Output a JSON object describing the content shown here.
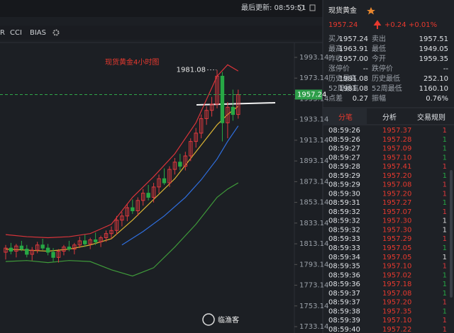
{
  "top_bar": {
    "last_update": "最后更新: 08:59:51"
  },
  "indicator_tabs": [
    "R",
    "CCI",
    "BIAS"
  ],
  "chart_data": {
    "type": "candlestick",
    "annotation": "现货黄金4小时图",
    "open": [
      1805,
      1809,
      1806,
      1811,
      1808,
      1803,
      1807,
      1812,
      1809,
      1805,
      1800,
      1806,
      1810,
      1808,
      1812,
      1816,
      1813,
      1817,
      1815,
      1819,
      1823,
      1826,
      1836,
      1840,
      1848,
      1845,
      1855,
      1862,
      1858,
      1868,
      1876,
      1872,
      1885,
      1892,
      1888,
      1898,
      1912,
      1920,
      1934,
      1942,
      1948,
      1975,
      1930,
      1945,
      1938
    ],
    "high": [
      1812,
      1814,
      1813,
      1816,
      1812,
      1810,
      1815,
      1818,
      1813,
      1809,
      1808,
      1812,
      1816,
      1814,
      1820,
      1822,
      1819,
      1824,
      1821,
      1826,
      1830,
      1840,
      1844,
      1852,
      1856,
      1858,
      1866,
      1870,
      1872,
      1880,
      1886,
      1888,
      1896,
      1900,
      1902,
      1915,
      1925,
      1938,
      1946,
      1955,
      1981.08,
      1979,
      1950,
      1962,
      1962
    ],
    "low": [
      1798,
      1803,
      1800,
      1806,
      1800,
      1797,
      1804,
      1807,
      1802,
      1796,
      1795,
      1802,
      1806,
      1803,
      1809,
      1810,
      1808,
      1812,
      1810,
      1815,
      1818,
      1822,
      1830,
      1835,
      1842,
      1840,
      1850,
      1855,
      1853,
      1862,
      1870,
      1868,
      1880,
      1884,
      1884,
      1893,
      1906,
      1915,
      1928,
      1936,
      1944,
      1912,
      1915,
      1932,
      1934
    ],
    "close": [
      1809,
      1806,
      1811,
      1808,
      1803,
      1807,
      1812,
      1809,
      1805,
      1800,
      1806,
      1810,
      1808,
      1812,
      1816,
      1813,
      1817,
      1815,
      1819,
      1823,
      1826,
      1836,
      1840,
      1848,
      1845,
      1855,
      1862,
      1858,
      1868,
      1876,
      1872,
      1885,
      1892,
      1888,
      1898,
      1912,
      1920,
      1934,
      1942,
      1948,
      1975,
      1930,
      1945,
      1938,
      1957.24
    ],
    "up_color": "#e0393e",
    "down_color": "#27a845",
    "lines": [
      {
        "color": "#d9343a",
        "x": [
          0,
          4,
          8,
          12,
          16,
          20,
          24,
          28,
          32,
          36,
          40,
          42,
          44
        ],
        "values": [
          1822,
          1820,
          1819,
          1820,
          1823,
          1832,
          1858,
          1878,
          1900,
          1930,
          1975,
          1986,
          1980
        ]
      },
      {
        "color": "#d8b234",
        "x": [
          0,
          4,
          8,
          12,
          16,
          20,
          24,
          28,
          32,
          36,
          40,
          42,
          44
        ],
        "values": [
          1808,
          1807,
          1806,
          1808,
          1812,
          1818,
          1836,
          1856,
          1876,
          1902,
          1928,
          1938,
          1946
        ]
      },
      {
        "color": "#2f6fe0",
        "x": [
          22,
          26,
          30,
          34,
          37,
          40,
          42,
          44
        ],
        "values": [
          1812,
          1825,
          1840,
          1858,
          1875,
          1895,
          1912,
          1927
        ]
      },
      {
        "color": "#3f9a3a",
        "x": [
          0,
          4,
          8,
          12,
          16,
          20,
          24,
          28,
          32,
          36,
          40,
          42,
          44
        ],
        "values": [
          1796,
          1797,
          1795,
          1797,
          1796,
          1788,
          1782,
          1790,
          1810,
          1832,
          1858,
          1866,
          1872
        ]
      }
    ],
    "ylim": [
      1727.0,
      2006.14
    ],
    "yticks": [
      1993.14,
      1973.14,
      1953.14,
      1933.14,
      1913.14,
      1893.14,
      1873.14,
      1853.14,
      1833.14,
      1813.14,
      1793.14,
      1773.14,
      1753.14,
      1733.14
    ],
    "last_price": 1957.24,
    "high_label": 1981.08
  },
  "watermark": "临渔客",
  "quote": {
    "name": "现货黄金",
    "price": "1957.24",
    "change": "+0.24",
    "change_pct": "+0.01%",
    "rows": [
      [
        "买入",
        "1957.24",
        "卖出",
        "1957.51"
      ],
      [
        "最高",
        "1963.91",
        "最低",
        "1949.05"
      ],
      [
        "昨收",
        "1957.00",
        "今开",
        "1959.35"
      ],
      [
        "涨停价",
        "--",
        "跌停价",
        "--"
      ],
      [
        "历史最高",
        "1981.08",
        "历史最低",
        "252.10"
      ],
      [
        "52周最高",
        "1981.08",
        "52周最低",
        "1160.10"
      ],
      [
        "点差",
        "0.27",
        "振幅",
        "0.76%"
      ]
    ]
  },
  "tabs": [
    "分笔",
    "分析",
    "交易规则"
  ],
  "trades": [
    {
      "time": "08:59:26",
      "price": "1957.37",
      "volume": "1",
      "color": "#e0393e"
    },
    {
      "time": "08:59:26",
      "price": "1957.28",
      "volume": "1",
      "color": "#27a845"
    },
    {
      "time": "08:59:27",
      "price": "1957.09",
      "volume": "1",
      "color": "#27a845"
    },
    {
      "time": "08:59:27",
      "price": "1957.10",
      "volume": "1",
      "color": "#27a845"
    },
    {
      "time": "08:59:28",
      "price": "1957.41",
      "volume": "1",
      "color": "#e0393e"
    },
    {
      "time": "08:59:29",
      "price": "1957.20",
      "volume": "1",
      "color": "#27a845"
    },
    {
      "time": "08:59:29",
      "price": "1957.08",
      "volume": "1",
      "color": "#e0393e"
    },
    {
      "time": "08:59:30",
      "price": "1957.20",
      "volume": "1",
      "color": "#e0393e"
    },
    {
      "time": "08:59:31",
      "price": "1957.27",
      "volume": "1",
      "color": "#27a845"
    },
    {
      "time": "08:59:32",
      "price": "1957.07",
      "volume": "1",
      "color": "#e0393e"
    },
    {
      "time": "08:59:32",
      "price": "1957.30",
      "volume": "1",
      "color": "#dddddd"
    },
    {
      "time": "08:59:32",
      "price": "1957.30",
      "volume": "1",
      "color": "#dddddd"
    },
    {
      "time": "08:59:33",
      "price": "1957.29",
      "volume": "1",
      "color": "#e0393e"
    },
    {
      "time": "08:59:33",
      "price": "1957.05",
      "volume": "1",
      "color": "#27a845"
    },
    {
      "time": "08:59:34",
      "price": "1957.05",
      "volume": "1",
      "color": "#dddddd"
    },
    {
      "time": "08:59:35",
      "price": "1957.10",
      "volume": "1",
      "color": "#e0393e"
    },
    {
      "time": "08:59:36",
      "price": "1957.02",
      "volume": "1",
      "color": "#27a845"
    },
    {
      "time": "08:59:36",
      "price": "1957.18",
      "volume": "1",
      "color": "#27a845"
    },
    {
      "time": "08:59:37",
      "price": "1957.08",
      "volume": "1",
      "color": "#27a845"
    },
    {
      "time": "08:59:37",
      "price": "1957.20",
      "volume": "1",
      "color": "#e0393e"
    },
    {
      "time": "08:59:38",
      "price": "1957.35",
      "volume": "1",
      "color": "#27a845"
    },
    {
      "time": "08:59:39",
      "price": "1957.10",
      "volume": "1",
      "color": "#e0393e"
    },
    {
      "time": "08:59:40",
      "price": "1957.22",
      "volume": "1",
      "color": "#e0393e"
    }
  ]
}
